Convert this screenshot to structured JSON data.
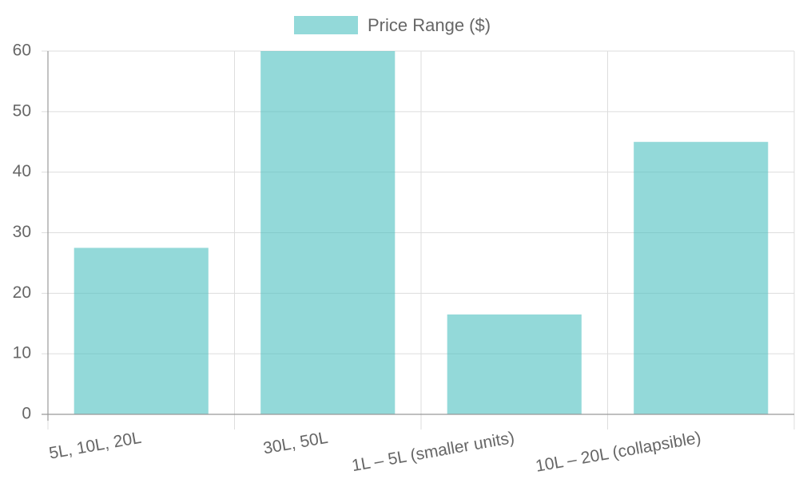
{
  "chart_data": {
    "type": "bar",
    "categories": [
      "5L, 10L, 20L",
      "30L, 50L",
      "1L – 5L (smaller units)",
      "10L – 20L (collapsible)"
    ],
    "series": [
      {
        "name": "Price Range ($)",
        "color": "rgba(75,192,192,0.6)",
        "values": [
          27.5,
          60,
          16.5,
          45
        ]
      }
    ],
    "ylim": [
      0,
      60
    ],
    "yticks": [
      0,
      10,
      20,
      30,
      40,
      50,
      60
    ],
    "grid": true,
    "legend": "top"
  }
}
